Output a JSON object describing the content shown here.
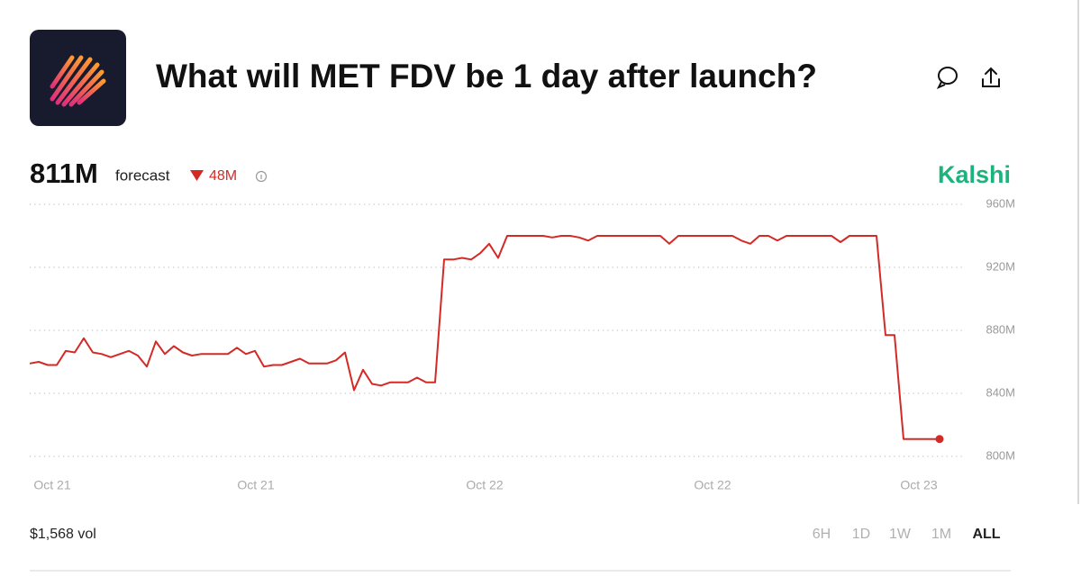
{
  "header": {
    "title": "What will MET FDV be 1 day after launch?"
  },
  "summary": {
    "forecast_value": "811M",
    "forecast_label": "forecast",
    "change": "48M",
    "source": "Kalshi",
    "volume": "$1,568 vol"
  },
  "range_buttons": [
    "6H",
    "1D",
    "1W",
    "1M",
    "ALL"
  ],
  "active_range": 4,
  "chart_data": {
    "type": "line",
    "color": "#d42a26",
    "grid": true,
    "x": [
      0,
      1,
      2,
      3,
      4,
      5,
      6,
      7,
      8,
      9,
      10,
      11,
      12,
      13,
      14,
      15,
      16,
      17,
      18,
      19,
      20,
      21,
      22,
      23,
      24,
      25,
      26,
      27,
      28,
      29,
      30,
      31,
      32,
      33,
      34,
      35,
      36,
      37,
      38,
      39,
      40,
      41,
      42,
      43,
      44,
      45,
      46,
      47,
      48,
      49,
      50,
      51,
      52,
      53,
      54,
      55,
      56,
      57,
      58,
      59,
      60,
      61,
      62,
      63,
      64,
      65,
      66,
      67,
      68,
      69,
      70,
      71,
      72,
      73,
      74,
      75,
      76,
      77,
      78,
      79,
      80,
      81,
      82,
      83,
      84,
      85,
      86,
      87,
      88,
      89,
      90,
      91,
      92,
      93,
      94,
      95,
      96,
      97,
      98,
      99,
      100,
      101
    ],
    "values": [
      859,
      860,
      858,
      858,
      867,
      866,
      875,
      866,
      865,
      863,
      865,
      867,
      864,
      857,
      873,
      865,
      870,
      866,
      864,
      865,
      865,
      865,
      865,
      869,
      865,
      867,
      857,
      858,
      858,
      860,
      862,
      859,
      859,
      859,
      861,
      866,
      842,
      855,
      846,
      845,
      847,
      847,
      847,
      850,
      847,
      847,
      925,
      925,
      926,
      925,
      929,
      935,
      926,
      940,
      940,
      940,
      940,
      940,
      939,
      940,
      940,
      939,
      937,
      940,
      940,
      940,
      940,
      940,
      940,
      940,
      940,
      935,
      940,
      940,
      940,
      940,
      940,
      940,
      940,
      937,
      935,
      940,
      940,
      937,
      940,
      940,
      940,
      940,
      940,
      940,
      936,
      940,
      940,
      940,
      940,
      877,
      877,
      811,
      811,
      811,
      811,
      811
    ],
    "xlim": [
      0,
      104
    ],
    "xticks": [
      {
        "value": 2.5,
        "label": "Oct 21"
      },
      {
        "value": 25.1,
        "label": "Oct 21"
      },
      {
        "value": 50.5,
        "label": "Oct 22"
      },
      {
        "value": 75.8,
        "label": "Oct 22"
      },
      {
        "value": 98.7,
        "label": "Oct 23"
      }
    ],
    "ylim": [
      800,
      960
    ],
    "yticks": [
      {
        "value": 800,
        "label": "800M"
      },
      {
        "value": 840,
        "label": "840M"
      },
      {
        "value": 880,
        "label": "880M"
      },
      {
        "value": 920,
        "label": "920M"
      },
      {
        "value": 960,
        "label": "960M"
      }
    ]
  }
}
